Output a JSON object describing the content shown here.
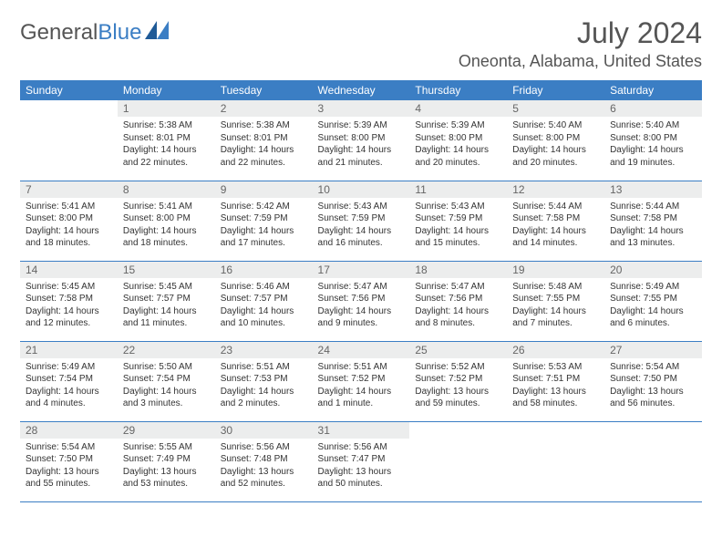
{
  "logo": {
    "text1": "General",
    "text2": "Blue"
  },
  "title": "July 2024",
  "location": "Oneonta, Alabama, United States",
  "colors": {
    "header_bg": "#3b7ec4",
    "header_text": "#ffffff",
    "daynum_bg": "#eceded",
    "row_border": "#3b7ec4",
    "page_bg": "#ffffff",
    "text": "#333333"
  },
  "day_labels": [
    "Sunday",
    "Monday",
    "Tuesday",
    "Wednesday",
    "Thursday",
    "Friday",
    "Saturday"
  ],
  "weeks": [
    [
      {
        "n": "",
        "sunrise": "",
        "sunset": "",
        "daylight": ""
      },
      {
        "n": "1",
        "sunrise": "Sunrise: 5:38 AM",
        "sunset": "Sunset: 8:01 PM",
        "daylight": "Daylight: 14 hours and 22 minutes."
      },
      {
        "n": "2",
        "sunrise": "Sunrise: 5:38 AM",
        "sunset": "Sunset: 8:01 PM",
        "daylight": "Daylight: 14 hours and 22 minutes."
      },
      {
        "n": "3",
        "sunrise": "Sunrise: 5:39 AM",
        "sunset": "Sunset: 8:00 PM",
        "daylight": "Daylight: 14 hours and 21 minutes."
      },
      {
        "n": "4",
        "sunrise": "Sunrise: 5:39 AM",
        "sunset": "Sunset: 8:00 PM",
        "daylight": "Daylight: 14 hours and 20 minutes."
      },
      {
        "n": "5",
        "sunrise": "Sunrise: 5:40 AM",
        "sunset": "Sunset: 8:00 PM",
        "daylight": "Daylight: 14 hours and 20 minutes."
      },
      {
        "n": "6",
        "sunrise": "Sunrise: 5:40 AM",
        "sunset": "Sunset: 8:00 PM",
        "daylight": "Daylight: 14 hours and 19 minutes."
      }
    ],
    [
      {
        "n": "7",
        "sunrise": "Sunrise: 5:41 AM",
        "sunset": "Sunset: 8:00 PM",
        "daylight": "Daylight: 14 hours and 18 minutes."
      },
      {
        "n": "8",
        "sunrise": "Sunrise: 5:41 AM",
        "sunset": "Sunset: 8:00 PM",
        "daylight": "Daylight: 14 hours and 18 minutes."
      },
      {
        "n": "9",
        "sunrise": "Sunrise: 5:42 AM",
        "sunset": "Sunset: 7:59 PM",
        "daylight": "Daylight: 14 hours and 17 minutes."
      },
      {
        "n": "10",
        "sunrise": "Sunrise: 5:43 AM",
        "sunset": "Sunset: 7:59 PM",
        "daylight": "Daylight: 14 hours and 16 minutes."
      },
      {
        "n": "11",
        "sunrise": "Sunrise: 5:43 AM",
        "sunset": "Sunset: 7:59 PM",
        "daylight": "Daylight: 14 hours and 15 minutes."
      },
      {
        "n": "12",
        "sunrise": "Sunrise: 5:44 AM",
        "sunset": "Sunset: 7:58 PM",
        "daylight": "Daylight: 14 hours and 14 minutes."
      },
      {
        "n": "13",
        "sunrise": "Sunrise: 5:44 AM",
        "sunset": "Sunset: 7:58 PM",
        "daylight": "Daylight: 14 hours and 13 minutes."
      }
    ],
    [
      {
        "n": "14",
        "sunrise": "Sunrise: 5:45 AM",
        "sunset": "Sunset: 7:58 PM",
        "daylight": "Daylight: 14 hours and 12 minutes."
      },
      {
        "n": "15",
        "sunrise": "Sunrise: 5:45 AM",
        "sunset": "Sunset: 7:57 PM",
        "daylight": "Daylight: 14 hours and 11 minutes."
      },
      {
        "n": "16",
        "sunrise": "Sunrise: 5:46 AM",
        "sunset": "Sunset: 7:57 PM",
        "daylight": "Daylight: 14 hours and 10 minutes."
      },
      {
        "n": "17",
        "sunrise": "Sunrise: 5:47 AM",
        "sunset": "Sunset: 7:56 PM",
        "daylight": "Daylight: 14 hours and 9 minutes."
      },
      {
        "n": "18",
        "sunrise": "Sunrise: 5:47 AM",
        "sunset": "Sunset: 7:56 PM",
        "daylight": "Daylight: 14 hours and 8 minutes."
      },
      {
        "n": "19",
        "sunrise": "Sunrise: 5:48 AM",
        "sunset": "Sunset: 7:55 PM",
        "daylight": "Daylight: 14 hours and 7 minutes."
      },
      {
        "n": "20",
        "sunrise": "Sunrise: 5:49 AM",
        "sunset": "Sunset: 7:55 PM",
        "daylight": "Daylight: 14 hours and 6 minutes."
      }
    ],
    [
      {
        "n": "21",
        "sunrise": "Sunrise: 5:49 AM",
        "sunset": "Sunset: 7:54 PM",
        "daylight": "Daylight: 14 hours and 4 minutes."
      },
      {
        "n": "22",
        "sunrise": "Sunrise: 5:50 AM",
        "sunset": "Sunset: 7:54 PM",
        "daylight": "Daylight: 14 hours and 3 minutes."
      },
      {
        "n": "23",
        "sunrise": "Sunrise: 5:51 AM",
        "sunset": "Sunset: 7:53 PM",
        "daylight": "Daylight: 14 hours and 2 minutes."
      },
      {
        "n": "24",
        "sunrise": "Sunrise: 5:51 AM",
        "sunset": "Sunset: 7:52 PM",
        "daylight": "Daylight: 14 hours and 1 minute."
      },
      {
        "n": "25",
        "sunrise": "Sunrise: 5:52 AM",
        "sunset": "Sunset: 7:52 PM",
        "daylight": "Daylight: 13 hours and 59 minutes."
      },
      {
        "n": "26",
        "sunrise": "Sunrise: 5:53 AM",
        "sunset": "Sunset: 7:51 PM",
        "daylight": "Daylight: 13 hours and 58 minutes."
      },
      {
        "n": "27",
        "sunrise": "Sunrise: 5:54 AM",
        "sunset": "Sunset: 7:50 PM",
        "daylight": "Daylight: 13 hours and 56 minutes."
      }
    ],
    [
      {
        "n": "28",
        "sunrise": "Sunrise: 5:54 AM",
        "sunset": "Sunset: 7:50 PM",
        "daylight": "Daylight: 13 hours and 55 minutes."
      },
      {
        "n": "29",
        "sunrise": "Sunrise: 5:55 AM",
        "sunset": "Sunset: 7:49 PM",
        "daylight": "Daylight: 13 hours and 53 minutes."
      },
      {
        "n": "30",
        "sunrise": "Sunrise: 5:56 AM",
        "sunset": "Sunset: 7:48 PM",
        "daylight": "Daylight: 13 hours and 52 minutes."
      },
      {
        "n": "31",
        "sunrise": "Sunrise: 5:56 AM",
        "sunset": "Sunset: 7:47 PM",
        "daylight": "Daylight: 13 hours and 50 minutes."
      },
      {
        "n": "",
        "sunrise": "",
        "sunset": "",
        "daylight": ""
      },
      {
        "n": "",
        "sunrise": "",
        "sunset": "",
        "daylight": ""
      },
      {
        "n": "",
        "sunrise": "",
        "sunset": "",
        "daylight": ""
      }
    ]
  ]
}
